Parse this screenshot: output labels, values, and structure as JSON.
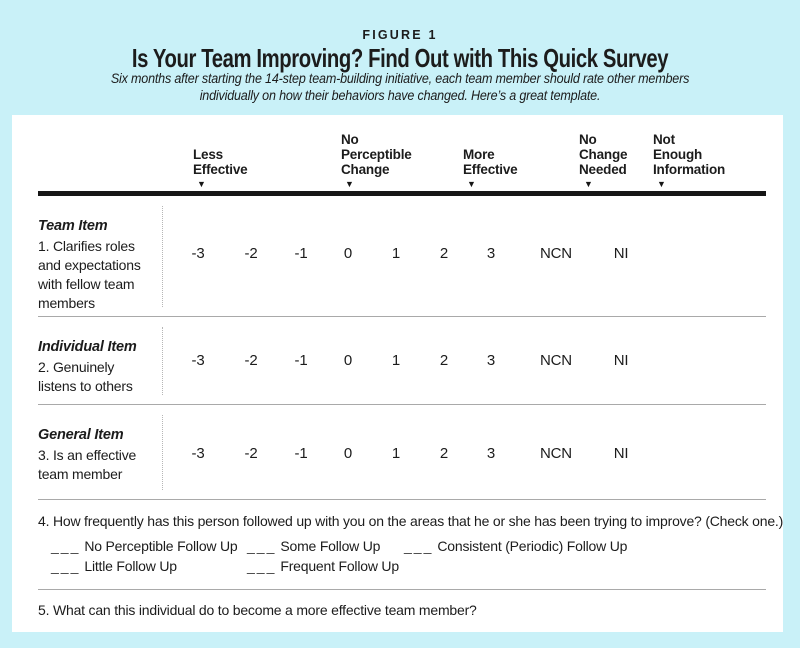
{
  "colors": {
    "page_background": "#c9f1f8",
    "card_background": "#ffffff",
    "text": "#1c1c1c",
    "thick_rule": "#161616",
    "thin_rule": "#a9a9a9",
    "dotted_divider": "#b6b6b6"
  },
  "figure_header": {
    "kicker": "FIGURE 1",
    "title": "Is Your Team Improving? Find Out with This Quick Survey",
    "subtitle": "Six months after starting the 14-step team-building initiative, each team member should rate other members\nindividually on how their behaviors have changed. Here’s a great template."
  },
  "survey": {
    "arrow_icon": "▼",
    "columns": [
      {
        "label": "Less\nEffective"
      },
      {
        "label": "No\nPerceptible\nChange"
      },
      {
        "label": "More\nEffective"
      },
      {
        "label": "No\nChange\nNeeded"
      },
      {
        "label": "Not\nEnough\nInformation"
      }
    ],
    "scale": [
      "-3",
      "-2",
      "-1",
      "0",
      "1",
      "2",
      "3",
      "NCN",
      "NI"
    ],
    "rows": [
      {
        "category": "Team Item",
        "description": "1. Clarifies roles\nand expectations\nwith fellow team\nmembers"
      },
      {
        "category": "Individual Item",
        "description": "2. Genuinely\nlistens to others"
      },
      {
        "category": "General Item",
        "description": "3. Is an effective\nteam member"
      }
    ],
    "question4": {
      "text": "4. How frequently has this person followed up with you on the areas that he or she has been trying to improve? (Check one.)",
      "blank": "___",
      "options_row1": [
        "No Perceptible Follow Up",
        "Some Follow Up",
        "Consistent (Periodic) Follow Up"
      ],
      "options_row2": [
        "Little Follow Up",
        "Frequent Follow Up"
      ]
    },
    "question5": "5. What can this individual do to become a more effective team member?"
  }
}
